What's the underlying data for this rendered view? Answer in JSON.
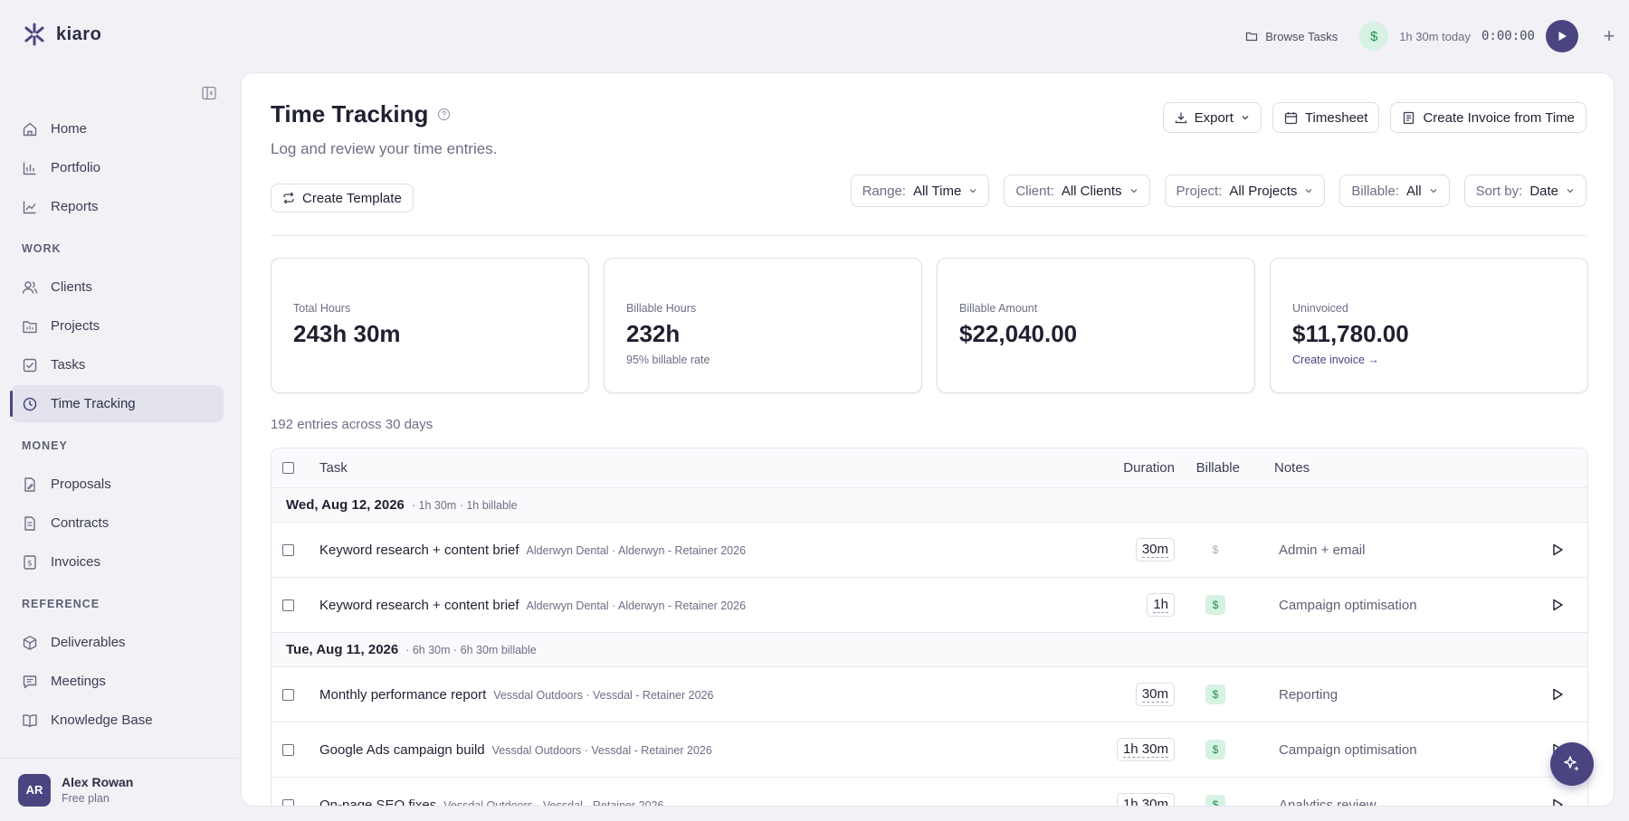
{
  "app": {
    "logo_text": "kiaro"
  },
  "topbar": {
    "browse_label": "Browse Tasks",
    "dollar_symbol": "$",
    "today_label": "1h 30m today",
    "timer": "0:00:00"
  },
  "sidebar": {
    "items_top": [
      {
        "label": "Home",
        "icon": "home-icon"
      },
      {
        "label": "Portfolio",
        "icon": "chart-icon"
      },
      {
        "label": "Reports",
        "icon": "trend-icon"
      }
    ],
    "section_work": "WORK",
    "items_work": [
      {
        "label": "Clients",
        "icon": "users-icon"
      },
      {
        "label": "Projects",
        "icon": "folder-icon"
      },
      {
        "label": "Tasks",
        "icon": "checkbox-icon"
      },
      {
        "label": "Time Tracking",
        "icon": "clock-icon"
      }
    ],
    "section_money": "MONEY",
    "items_money": [
      {
        "label": "Proposals",
        "icon": "document-edit-icon"
      },
      {
        "label": "Contracts",
        "icon": "document-icon"
      },
      {
        "label": "Invoices",
        "icon": "dollar-document-icon"
      }
    ],
    "section_reference": "REFERENCE",
    "items_reference": [
      {
        "label": "Deliverables",
        "icon": "box-icon"
      },
      {
        "label": "Meetings",
        "icon": "message-icon"
      },
      {
        "label": "Knowledge Base",
        "icon": "book-icon"
      }
    ],
    "user": {
      "initials": "AR",
      "name": "Alex Rowan",
      "plan": "Free plan"
    }
  },
  "main": {
    "title": "Time Tracking",
    "subtitle": "Log and review your time entries.",
    "actions": {
      "export": "Export",
      "timesheet": "Timesheet",
      "create_invoice": "Create Invoice from Time"
    },
    "create_template": "Create Template",
    "filters": [
      {
        "label": "Range:",
        "value": "All Time"
      },
      {
        "label": "Client:",
        "value": "All Clients"
      },
      {
        "label": "Project:",
        "value": "All Projects"
      },
      {
        "label": "Billable:",
        "value": "All"
      },
      {
        "label": "Sort by:",
        "value": "Date"
      }
    ],
    "stats": [
      {
        "label": "Total Hours",
        "value": "243h 30m",
        "sub": ""
      },
      {
        "label": "Billable Hours",
        "value": "232h",
        "sub": "95% billable rate"
      },
      {
        "label": "Billable Amount",
        "value": "$22,040.00",
        "sub": ""
      },
      {
        "label": "Uninvoiced",
        "value": "$11,780.00",
        "link": "Create invoice →"
      }
    ],
    "entries_count": "192 entries across 30 days",
    "table": {
      "headers": {
        "task": "Task",
        "duration": "Duration",
        "billable": "Billable",
        "notes": "Notes"
      },
      "groups": [
        {
          "date": "Wed, Aug 12, 2026",
          "meta": "· 1h 30m · 1h billable",
          "rows": [
            {
              "task": "Keyword research + content brief",
              "meta": "Alderwyn Dental · Alderwyn - Retainer 2026",
              "duration": "30m",
              "billable": false,
              "note": "Admin + email"
            },
            {
              "task": "Keyword research + content brief",
              "meta": "Alderwyn Dental · Alderwyn - Retainer 2026",
              "duration": "1h",
              "billable": true,
              "note": "Campaign optimisation"
            }
          ]
        },
        {
          "date": "Tue, Aug 11, 2026",
          "meta": "· 6h 30m · 6h 30m billable",
          "rows": [
            {
              "task": "Monthly performance report",
              "meta": "Vessdal Outdoors · Vessdal - Retainer 2026",
              "duration": "30m",
              "billable": true,
              "note": "Reporting"
            },
            {
              "task": "Google Ads campaign build",
              "meta": "Vessdal Outdoors · Vessdal - Retainer 2026",
              "duration": "1h 30m",
              "billable": true,
              "note": "Campaign optimisation"
            },
            {
              "task": "On-page SEO fixes",
              "meta": "Vessdal Outdoors · Vessdal - Retainer 2026",
              "duration": "1h 30m",
              "billable": true,
              "note": "Analytics review"
            }
          ]
        }
      ],
      "billable_symbol": "$"
    }
  }
}
